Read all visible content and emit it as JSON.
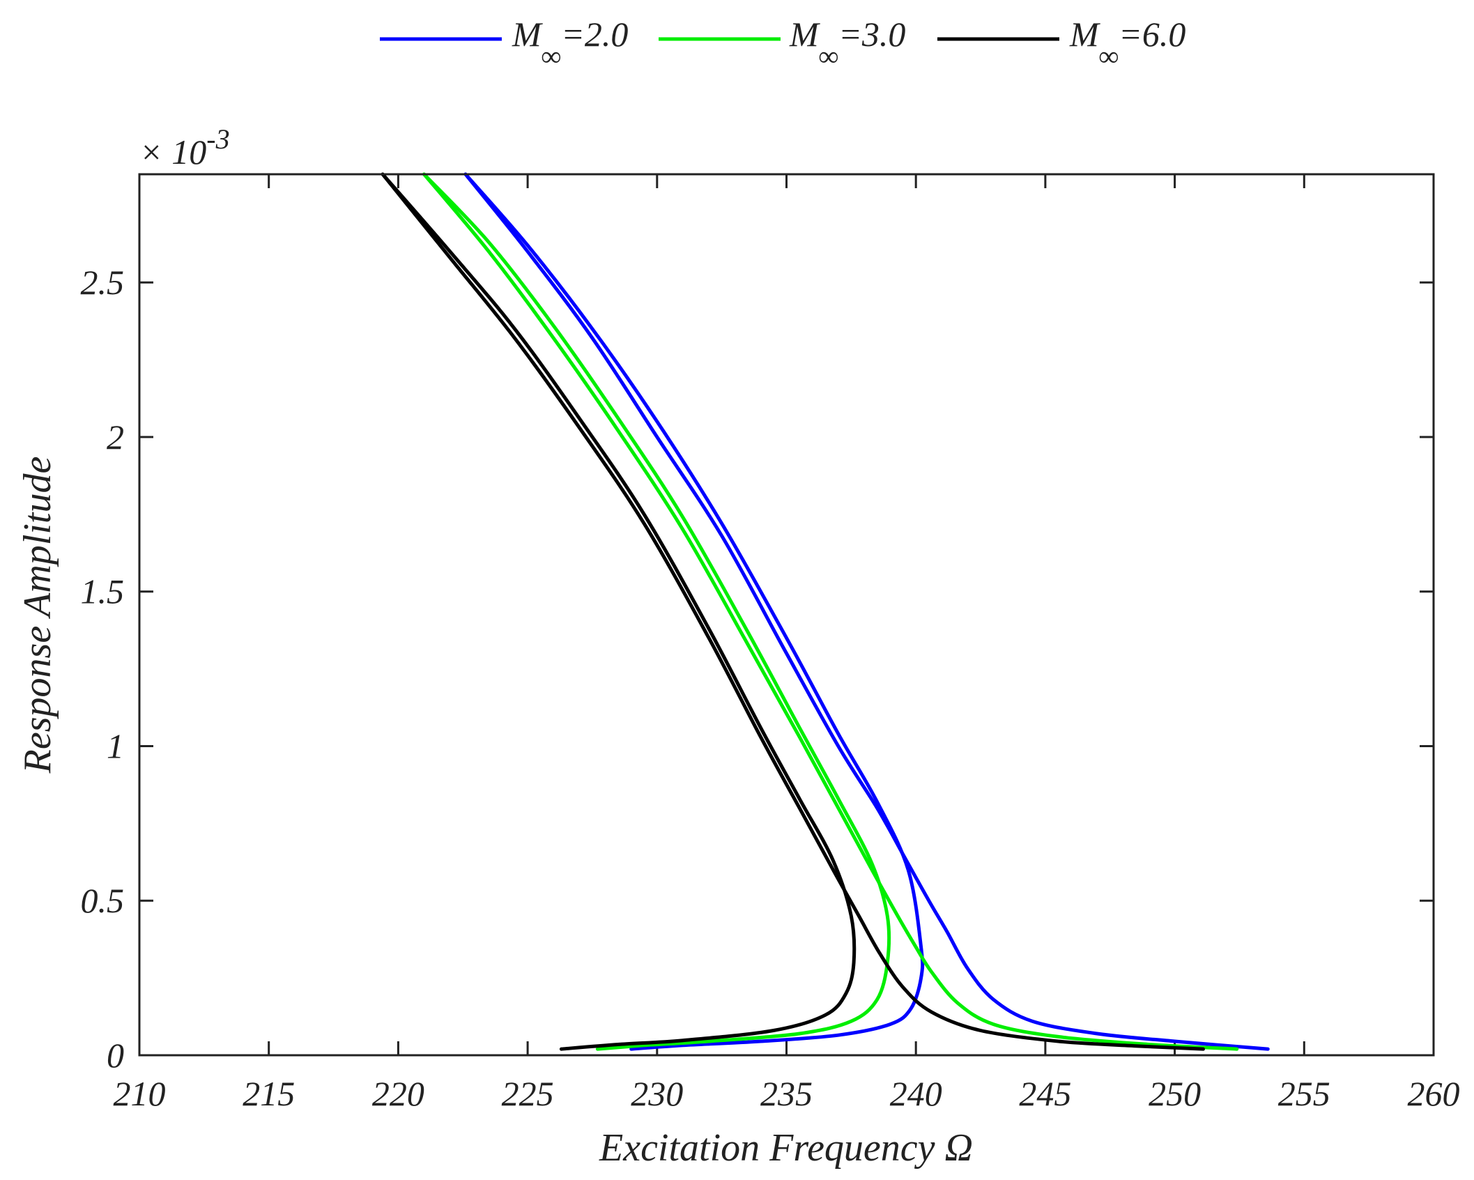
{
  "chart_data": {
    "type": "line",
    "title": "",
    "xlabel": "Excitation Frequency Ω",
    "ylabel": "Response Amplitude",
    "y_exponent_label": "× 10",
    "y_exponent_power": "-3",
    "xlim": [
      210,
      260
    ],
    "ylim": [
      0,
      2.85
    ],
    "x_ticks": [
      210,
      215,
      220,
      225,
      230,
      235,
      240,
      245,
      250,
      255,
      260
    ],
    "x_tick_labels": [
      "210",
      "215",
      "220",
      "225",
      "230",
      "235",
      "240",
      "245",
      "250",
      "255",
      "260"
    ],
    "y_ticks": [
      0,
      0.5,
      1,
      1.5,
      2,
      2.5
    ],
    "y_tick_labels": [
      "0",
      "0.5",
      "1",
      "1.5",
      "2",
      "2.5"
    ],
    "grid": false,
    "legend_position": "top-center",
    "series": [
      {
        "name": "M∞=2.0",
        "legend_base": "M",
        "legend_sub": "∞",
        "legend_rest": "=2.0",
        "color": "#0000ff",
        "upper": [
          [
            222.6,
            2.85
          ],
          [
            225,
            2.6
          ],
          [
            227.5,
            2.32
          ],
          [
            230,
            2.0
          ],
          [
            232.5,
            1.68
          ],
          [
            235,
            1.3
          ],
          [
            237,
            1.0
          ],
          [
            238.5,
            0.8
          ],
          [
            239.5,
            0.65
          ],
          [
            240.5,
            0.5
          ],
          [
            241.2,
            0.4
          ],
          [
            242,
            0.28
          ],
          [
            243,
            0.18
          ],
          [
            244.5,
            0.11
          ],
          [
            247,
            0.07
          ],
          [
            250,
            0.045
          ],
          [
            253.6,
            0.02
          ]
        ],
        "lower": [
          [
            222.6,
            2.85
          ],
          [
            225,
            2.62
          ],
          [
            227.5,
            2.35
          ],
          [
            230,
            2.05
          ],
          [
            232.5,
            1.72
          ],
          [
            235,
            1.35
          ],
          [
            237,
            1.04
          ],
          [
            238.5,
            0.82
          ],
          [
            239.7,
            0.6
          ],
          [
            240.2,
            0.35
          ],
          [
            240.2,
            0.25
          ],
          [
            239.8,
            0.15
          ],
          [
            239,
            0.1
          ],
          [
            237,
            0.065
          ],
          [
            234,
            0.045
          ],
          [
            231,
            0.032
          ],
          [
            229,
            0.02
          ]
        ]
      },
      {
        "name": "M∞=3.0",
        "legend_base": "M",
        "legend_sub": "∞",
        "legend_rest": "=3.0",
        "color": "#00ee00",
        "upper": [
          [
            221.0,
            2.85
          ],
          [
            223.5,
            2.6
          ],
          [
            226,
            2.32
          ],
          [
            228.5,
            2.02
          ],
          [
            231,
            1.7
          ],
          [
            233.5,
            1.33
          ],
          [
            235.5,
            1.03
          ],
          [
            237,
            0.8
          ],
          [
            238.3,
            0.6
          ],
          [
            239.3,
            0.45
          ],
          [
            240,
            0.35
          ],
          [
            240.6,
            0.27
          ],
          [
            241.6,
            0.17
          ],
          [
            243,
            0.1
          ],
          [
            245.5,
            0.06
          ],
          [
            249,
            0.035
          ],
          [
            252.4,
            0.02
          ]
        ],
        "lower": [
          [
            221.0,
            2.85
          ],
          [
            223.5,
            2.63
          ],
          [
            226,
            2.36
          ],
          [
            228.5,
            2.06
          ],
          [
            231,
            1.74
          ],
          [
            233.5,
            1.37
          ],
          [
            235.5,
            1.06
          ],
          [
            237,
            0.83
          ],
          [
            238.3,
            0.62
          ],
          [
            238.9,
            0.45
          ],
          [
            238.9,
            0.3
          ],
          [
            238.5,
            0.18
          ],
          [
            237.5,
            0.11
          ],
          [
            235.5,
            0.07
          ],
          [
            232,
            0.045
          ],
          [
            229.5,
            0.032
          ],
          [
            227.7,
            0.02
          ]
        ]
      },
      {
        "name": "M∞=6.0",
        "legend_base": "M",
        "legend_sub": "∞",
        "legend_rest": "=6.0",
        "color": "#000000",
        "upper": [
          [
            219.4,
            2.85
          ],
          [
            222,
            2.58
          ],
          [
            224.5,
            2.32
          ],
          [
            227,
            2.03
          ],
          [
            229.5,
            1.72
          ],
          [
            232,
            1.35
          ],
          [
            234,
            1.03
          ],
          [
            235.5,
            0.8
          ],
          [
            236.8,
            0.6
          ],
          [
            237.8,
            0.45
          ],
          [
            238.6,
            0.33
          ],
          [
            239.5,
            0.22
          ],
          [
            240.6,
            0.14
          ],
          [
            242.5,
            0.08
          ],
          [
            245.5,
            0.045
          ],
          [
            248.5,
            0.03
          ],
          [
            251.1,
            0.02
          ]
        ],
        "lower": [
          [
            219.4,
            2.85
          ],
          [
            222,
            2.6
          ],
          [
            224.5,
            2.35
          ],
          [
            227,
            2.06
          ],
          [
            229.5,
            1.75
          ],
          [
            232,
            1.38
          ],
          [
            234,
            1.06
          ],
          [
            235.5,
            0.83
          ],
          [
            236.8,
            0.63
          ],
          [
            237.5,
            0.45
          ],
          [
            237.6,
            0.3
          ],
          [
            237.3,
            0.2
          ],
          [
            236.5,
            0.13
          ],
          [
            234.5,
            0.08
          ],
          [
            231,
            0.048
          ],
          [
            228.5,
            0.035
          ],
          [
            226.3,
            0.02
          ]
        ]
      }
    ]
  }
}
